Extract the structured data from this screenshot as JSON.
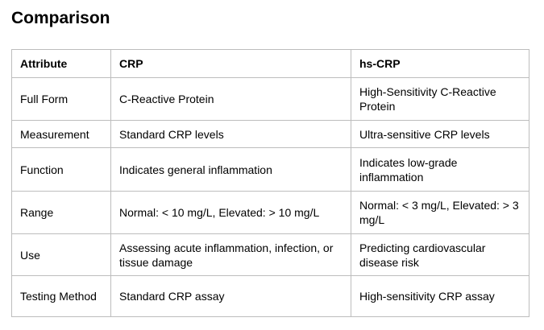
{
  "page": {
    "title": "Comparison"
  },
  "table": {
    "columns": {
      "attribute": "Attribute",
      "crp": "CRP",
      "hscrp": "hs-CRP"
    },
    "rows": [
      {
        "attribute": "Full Form",
        "crp": "C-Reactive Protein",
        "hscrp": "High-Sensitivity C-Reactive Protein"
      },
      {
        "attribute": "Measurement",
        "crp": "Standard CRP levels",
        "hscrp": "Ultra-sensitive CRP levels"
      },
      {
        "attribute": "Function",
        "crp": "Indicates general inflammation",
        "hscrp": "Indicates low-grade inflammation"
      },
      {
        "attribute": "Range",
        "crp": "Normal: < 10 mg/L, Elevated: > 10 mg/L",
        "hscrp": "Normal: < 3 mg/L, Elevated: > 3 mg/L"
      },
      {
        "attribute": "Use",
        "crp": "Assessing acute inflammation, infection, or tissue damage",
        "hscrp": "Predicting cardiovascular disease risk"
      },
      {
        "attribute": "Testing Method",
        "crp": "Standard CRP assay",
        "hscrp": "High-sensitivity CRP assay"
      }
    ],
    "colors": {
      "border": "#bdbdbd",
      "text": "#000000",
      "background": "#ffffff"
    }
  }
}
